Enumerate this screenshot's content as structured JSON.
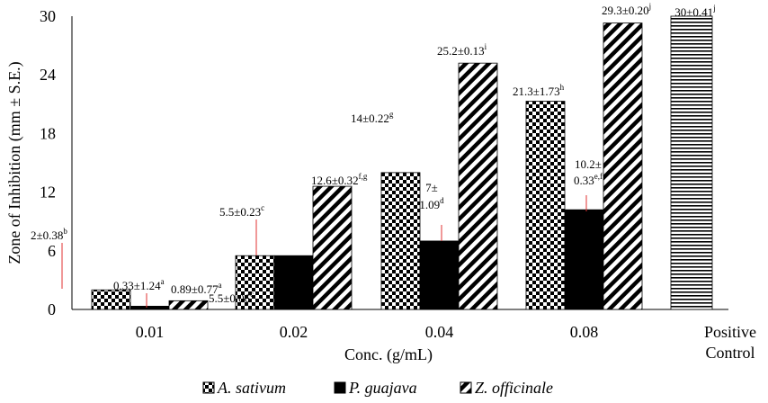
{
  "chart_data": {
    "type": "bar",
    "xlabel": "Conc. (g/mL)",
    "ylabel": "Zone of Inhibition (mm ± S.E.)",
    "ylim": [
      0,
      30
    ],
    "yticks": [
      0,
      6,
      12,
      18,
      24,
      30
    ],
    "grid": false,
    "legend_position": "bottom",
    "categories": [
      "0.01",
      "0.02",
      "0.04",
      "0.08"
    ],
    "series": [
      {
        "name": "A. sativum",
        "pattern": "checker",
        "values": [
          2,
          5.5,
          14,
          21.3
        ],
        "labels": [
          {
            "text": "2±0.38",
            "sup": "b"
          },
          {
            "text": "5.5±0.06",
            "sup": "c"
          },
          {
            "text": "14±0.22",
            "sup": "g"
          },
          {
            "text": "21.3±1.73",
            "sup": "h"
          }
        ]
      },
      {
        "name": "P. guajava",
        "pattern": "solid",
        "values": [
          0.33,
          5.5,
          7,
          10.2
        ],
        "labels": [
          {
            "text": "0.33±1.24",
            "sup": "a"
          },
          {
            "text": "5.5±0.23",
            "sup": "c"
          },
          {
            "text": "7±",
            "text2": "1.09",
            "sup": "d"
          },
          {
            "text": "10.2±",
            "text2": "0.33",
            "sup": "e,f"
          }
        ]
      },
      {
        "name": "Z. officinale",
        "pattern": "diagonal",
        "values": [
          0.89,
          12.6,
          25.2,
          29.3
        ],
        "labels": [
          {
            "text": "0.89±0.77",
            "sup": "a"
          },
          {
            "text": "12.6±0.32",
            "sup": "f,g"
          },
          {
            "text": "25.2±0.13",
            "sup": "i"
          },
          {
            "text": "29.3±0.20",
            "sup": "j"
          }
        ]
      }
    ],
    "control": {
      "label_line1": "Positive",
      "label_line2": "Control",
      "value": 30,
      "pattern": "horizontal",
      "label": {
        "text": "30±0.41",
        "sup": "j"
      }
    },
    "colors": {
      "bar": "#000000",
      "leader": "#e03030",
      "background": "#ffffff"
    }
  }
}
